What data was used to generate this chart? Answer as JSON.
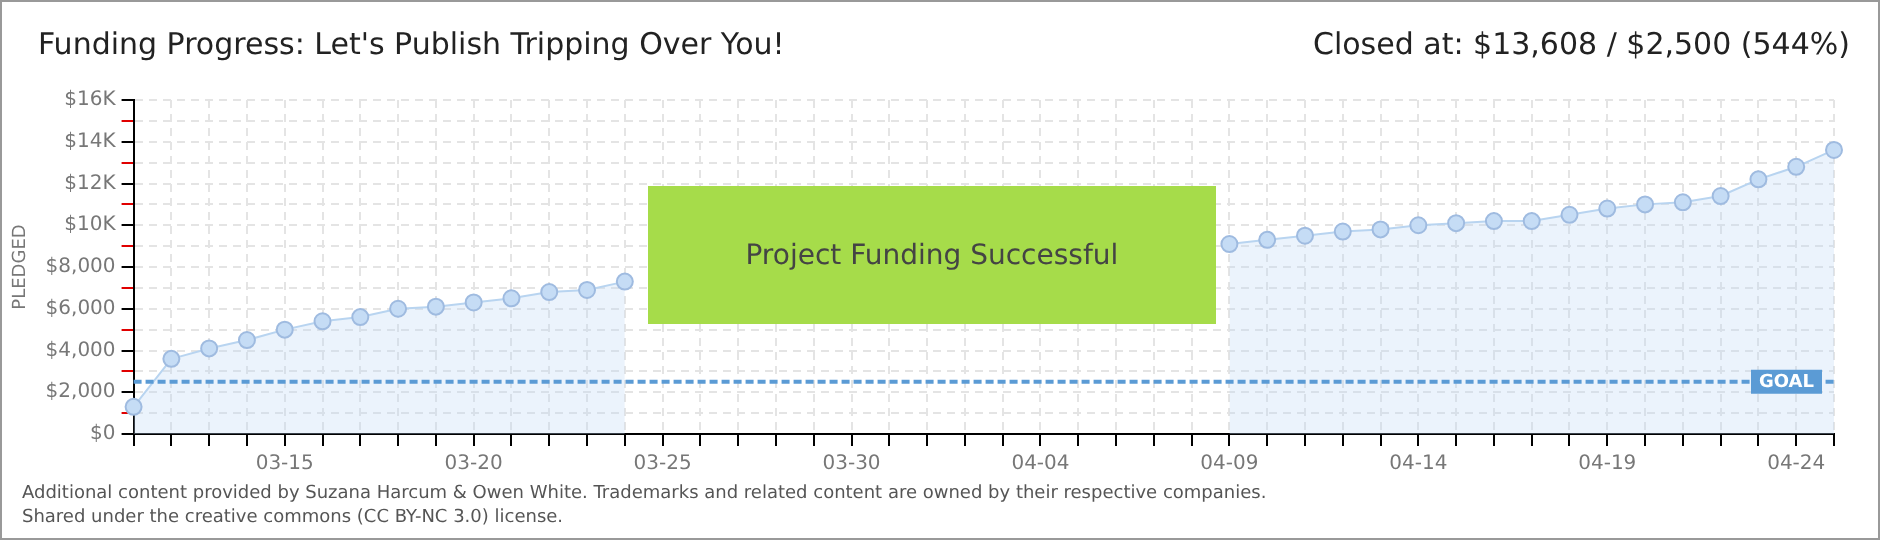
{
  "chart_data": {
    "type": "area",
    "title": "Funding Progress: Let's Publish Tripping Over You!",
    "subtitle": "Closed at: $13,608 / $2,500 (544%)",
    "ylabel": "PLEDGED",
    "categories": [
      null,
      null,
      null,
      null,
      "03-15",
      null,
      null,
      null,
      null,
      "03-20",
      null,
      null,
      null,
      null,
      "03-25",
      null,
      null,
      null,
      null,
      "03-30",
      null,
      null,
      null,
      null,
      "04-04",
      null,
      null,
      null,
      null,
      "04-09",
      null,
      null,
      null,
      null,
      "04-14",
      null,
      null,
      null,
      null,
      "04-19",
      null,
      null,
      null,
      null,
      "04-24",
      null
    ],
    "series": [
      {
        "color": "#b8d4f0",
        "values": [
          1300,
          3600,
          4100,
          4500,
          5000,
          5400,
          5600,
          6000,
          6100,
          6300,
          6500,
          6800,
          6900,
          7300,
          null,
          null,
          null,
          null,
          null,
          null,
          null,
          null,
          null,
          null,
          null,
          null,
          null,
          null,
          null,
          9100,
          9300,
          9500,
          9700,
          9800,
          10000,
          10100,
          10200,
          10200,
          10500,
          10800,
          11000,
          11100,
          11400,
          12200,
          12800,
          13608
        ]
      }
    ],
    "ylim": [
      0,
      16000
    ],
    "yticks": [
      {
        "value": 0,
        "label": "$0"
      },
      {
        "value": 1000,
        "label": null
      },
      {
        "value": 2000,
        "label": "$2,000"
      },
      {
        "value": 3000,
        "label": null
      },
      {
        "value": 4000,
        "label": "$4,000"
      },
      {
        "value": 5000,
        "label": null
      },
      {
        "value": 6000,
        "label": "$6,000"
      },
      {
        "value": 7000,
        "label": null
      },
      {
        "value": 8000,
        "label": "$8,000"
      },
      {
        "value": 9000,
        "label": null
      },
      {
        "value": 10000,
        "label": "$10K"
      },
      {
        "value": 11000,
        "label": null
      },
      {
        "value": 12000,
        "label": "$12K"
      },
      {
        "value": 13000,
        "label": null
      },
      {
        "value": 14000,
        "label": "$14K"
      },
      {
        "value": 15000,
        "label": null
      },
      {
        "value": 16000,
        "label": "$16K"
      }
    ],
    "grid": true,
    "marker": "circle",
    "legend": false,
    "ref_lines": [
      {
        "axis": "y",
        "value": 2500,
        "label": "GOAL",
        "color": "#5b9bd5",
        "line_style": "dashed"
      }
    ],
    "annotations": [
      "Project Funding Successful",
      "Additional content provided by Suzana Harcum & Owen White. Trademarks and related content are owned by their respective companies.",
      "Shared under the creative commons (CC BY-NC 3.0) license."
    ]
  }
}
